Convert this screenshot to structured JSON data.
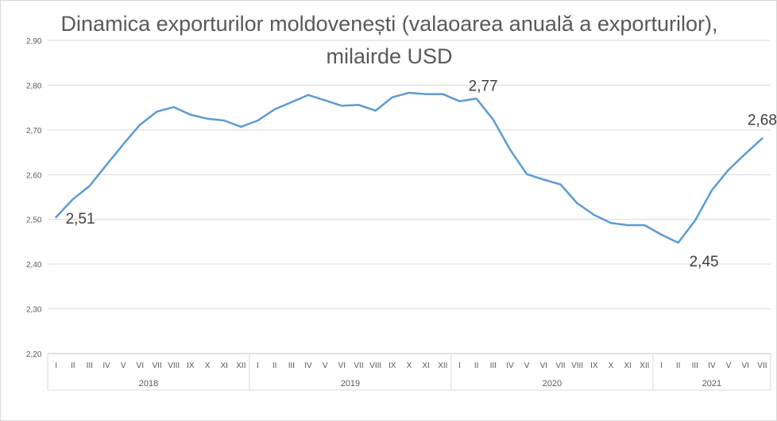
{
  "chart_data": {
    "type": "line",
    "title": "Dinamica exporturilor moldovenești (valaoarea anuală a exporturilor), milairde USD",
    "ylim": [
      2.2,
      2.9
    ],
    "yticks": [
      "2,20",
      "2,30",
      "2,40",
      "2,50",
      "2,60",
      "2,70",
      "2,80",
      "2,90"
    ],
    "grid": true,
    "legend": "none",
    "line_color": "#5b9bd5",
    "years": [
      {
        "label": "2018",
        "months": [
          "I",
          "II",
          "III",
          "IV",
          "V",
          "VI",
          "VII",
          "VIII",
          "IX",
          "X",
          "XI",
          "XII"
        ]
      },
      {
        "label": "2019",
        "months": [
          "I",
          "II",
          "III",
          "IV",
          "V",
          "VI",
          "VII",
          "VIII",
          "IX",
          "X",
          "XI",
          "XII"
        ]
      },
      {
        "label": "2020",
        "months": [
          "I",
          "II",
          "III",
          "IV",
          "V",
          "VI",
          "VII",
          "VIII",
          "IX",
          "X",
          "XI",
          "XII"
        ]
      },
      {
        "label": "2021",
        "months": [
          "I",
          "II",
          "III",
          "IV",
          "V",
          "VI",
          "VII"
        ]
      }
    ],
    "values": [
      2.505,
      2.545,
      2.575,
      2.622,
      2.668,
      2.712,
      2.741,
      2.751,
      2.734,
      2.725,
      2.721,
      2.707,
      2.721,
      2.746,
      2.762,
      2.778,
      2.766,
      2.754,
      2.756,
      2.743,
      2.773,
      2.783,
      2.78,
      2.78,
      2.764,
      2.77,
      2.723,
      2.656,
      2.601,
      2.589,
      2.578,
      2.536,
      2.51,
      2.492,
      2.487,
      2.487,
      2.466,
      2.448,
      2.497,
      2.565,
      2.611,
      2.647,
      2.681
    ],
    "annotations": [
      {
        "index": 0,
        "text": "2,51"
      },
      {
        "index": 25,
        "text": "2,77"
      },
      {
        "index": 37,
        "text": "2,45"
      },
      {
        "index": 42,
        "text": "2,68"
      }
    ]
  }
}
